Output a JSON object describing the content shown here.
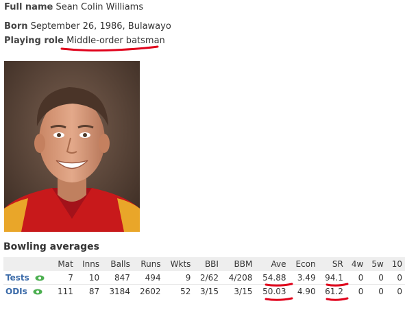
{
  "profile": {
    "full_name_label": "Full name",
    "full_name_value": "Sean Colin Williams",
    "born_label": "Born",
    "born_value": "September 26, 1986, Bulawayo",
    "role_label": "Playing role",
    "role_value": "Middle-order batsman"
  },
  "photo": {
    "icon": "player-portrait-photo"
  },
  "bowling": {
    "title": "Bowling averages",
    "columns": [
      "",
      "Mat",
      "Inns",
      "Balls",
      "Runs",
      "Wkts",
      "BBI",
      "BBM",
      "Ave",
      "Econ",
      "SR",
      "4w",
      "5w",
      "10"
    ],
    "rows": [
      {
        "format": "Tests",
        "cells": [
          "7",
          "10",
          "847",
          "494",
          "9",
          "2/62",
          "4/208",
          "54.88",
          "3.49",
          "94.1",
          "0",
          "0",
          "0"
        ]
      },
      {
        "format": "ODIs",
        "cells": [
          "111",
          "87",
          "3184",
          "2602",
          "52",
          "3/15",
          "3/15",
          "50.03",
          "4.90",
          "61.2",
          "0",
          "0",
          "0"
        ]
      }
    ]
  },
  "colors": {
    "accent": "#3a6aa8",
    "annotation": "#e0001b",
    "eye_icon": "#4caf50"
  }
}
